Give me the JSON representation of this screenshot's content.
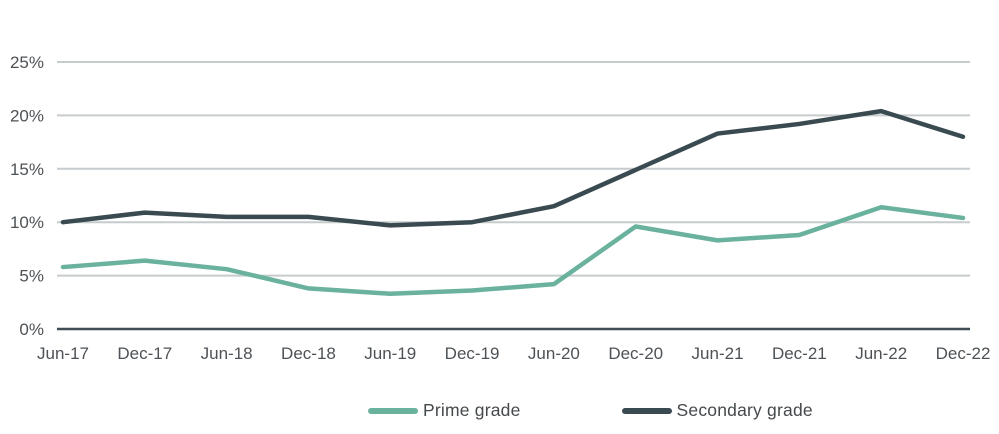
{
  "chart_data": {
    "type": "line",
    "categories": [
      "Jun-17",
      "Dec-17",
      "Jun-18",
      "Dec-18",
      "Jun-19",
      "Dec-19",
      "Jun-20",
      "Dec-20",
      "Jun-21",
      "Dec-21",
      "Jun-22",
      "Dec-22"
    ],
    "series": [
      {
        "name": "Prime grade",
        "color": "#6ab29d",
        "values": [
          5.8,
          6.4,
          5.6,
          3.8,
          3.3,
          3.6,
          4.2,
          9.6,
          8.3,
          8.8,
          11.4,
          10.4
        ]
      },
      {
        "name": "Secondary grade",
        "color": "#3a4a51",
        "values": [
          10.0,
          10.9,
          10.5,
          10.5,
          9.7,
          10.0,
          11.5,
          14.9,
          18.3,
          19.2,
          20.4,
          18.0
        ]
      }
    ],
    "y_ticks": [
      0,
      5,
      10,
      15,
      20,
      25
    ],
    "y_tick_labels": [
      "0%",
      "5%",
      "10%",
      "15%",
      "20%",
      "25%"
    ],
    "ylim": [
      0,
      25
    ],
    "grid": "horizontal",
    "legend_position": "bottom"
  },
  "legend": {
    "items": [
      {
        "label": "Prime grade",
        "color": "#6ab29d"
      },
      {
        "label": "Secondary grade",
        "color": "#3a4a51"
      }
    ]
  },
  "colors": {
    "prime": "#6ab29d",
    "secondary": "#3a4a51",
    "gridline": "#c6cbcd",
    "axis_line": "#3f4d54",
    "tick_text": "#4d5256",
    "legend_text": "#44494c",
    "background": "#ffffff"
  }
}
